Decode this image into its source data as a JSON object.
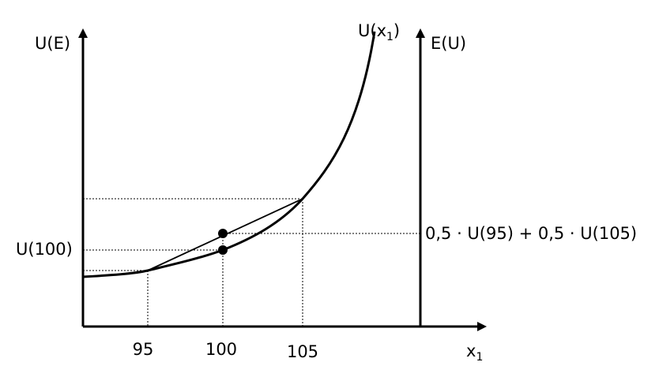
{
  "labels": {
    "y_axis_left": "U(E)",
    "y_axis_right": "E(U)",
    "curve_base": "U(x",
    "curve_sub": "1",
    "curve_close": ")",
    "x_axis_base": "x",
    "x_axis_sub": "1",
    "u100": "U(100)",
    "expected_utility": "0,5 · U(95) + 0,5 · U(105)"
  },
  "ticks": [
    "95",
    "100",
    "105"
  ]
}
